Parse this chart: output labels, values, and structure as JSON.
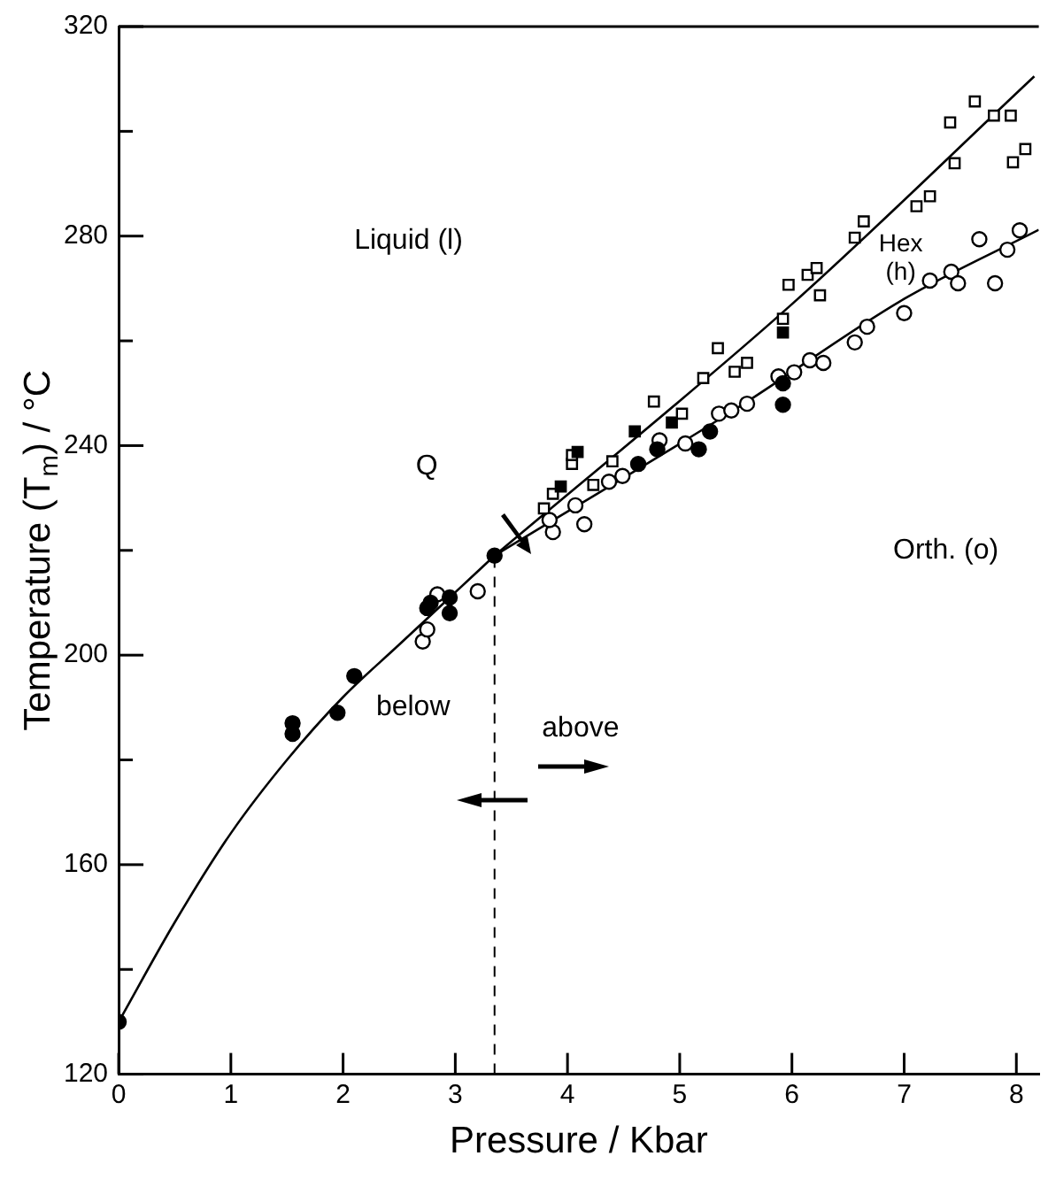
{
  "chart_data": {
    "type": "scatter",
    "xlabel": "Pressure / Kbar",
    "ylabel": "Temperature (T$_{m}$) / °C",
    "xlim": [
      0,
      8.2
    ],
    "ylim": [
      120,
      320
    ],
    "xticks": [
      0,
      1,
      2,
      3,
      4,
      5,
      6,
      7,
      8
    ],
    "yticks": [
      120,
      {
        "value": 140,
        "label": null
      },
      160,
      {
        "value": 180,
        "label": null
      },
      200,
      {
        "value": 220,
        "label": null
      },
      240,
      {
        "value": 260,
        "label": null
      },
      280,
      {
        "value": 300,
        "label": null
      },
      320
    ],
    "grid": false,
    "legend": false,
    "series": [
      {
        "type": "line",
        "color": "#000000",
        "marker": "none",
        "x": [
          0,
          0.5,
          1,
          1.5,
          2,
          2.5,
          3,
          3.35
        ],
        "values": [
          130,
          149,
          166,
          180,
          192,
          202,
          212,
          219
        ]
      },
      {
        "type": "line",
        "color": "#000000",
        "marker": "none",
        "x": [
          3.35,
          6,
          8.16
        ],
        "values": [
          219,
          267,
          310.5
        ]
      },
      {
        "type": "line",
        "color": "#000000",
        "marker": "none",
        "x": [
          3.35,
          5.5,
          7,
          8.2
        ],
        "values": [
          219,
          247,
          268,
          281.2
        ]
      },
      {
        "type": "scatter",
        "color": "#000000",
        "marker": "circle",
        "x": [
          0,
          1.55,
          1.55,
          1.95,
          2.1,
          2.75,
          2.78,
          2.95,
          2.95,
          3.35,
          4.63,
          4.8,
          5.17,
          5.27,
          5.92,
          5.92
        ],
        "values": [
          130,
          185,
          187,
          189,
          196,
          209,
          210,
          208,
          211,
          219,
          236.5,
          239.3,
          239.3,
          242.7,
          251.9,
          247.8
        ]
      },
      {
        "type": "scatter",
        "color": "#ffffff",
        "marker": "circle",
        "x": [
          2.71,
          2.75,
          2.84,
          3.2,
          3.87,
          3.84,
          4.07,
          4.15,
          4.37,
          4.49,
          4.82,
          5.05,
          5.35,
          5.46,
          5.6,
          5.88,
          6.02,
          6.16,
          6.28,
          6.56,
          6.67,
          7.0,
          7.23,
          7.42,
          7.48,
          7.67,
          7.81,
          7.92,
          8.03
        ],
        "values": [
          202.6,
          204.9,
          211.6,
          212.2,
          223.5,
          225.8,
          228.6,
          225,
          233.1,
          234.2,
          241,
          240.4,
          246.1,
          246.7,
          248,
          253.2,
          254,
          256.3,
          255.8,
          259.7,
          262.7,
          265.3,
          271.5,
          273.2,
          271,
          279.4,
          271,
          277.4,
          281.1
        ]
      },
      {
        "type": "scatter",
        "color": "#000000",
        "marker": "square",
        "x": [
          4.09,
          3.94,
          4.6,
          4.93,
          5.92
        ],
        "values": [
          238.8,
          232.2,
          242.7,
          244.4,
          261.6
        ]
      },
      {
        "type": "scatter",
        "color": "#ffffff",
        "marker": "square",
        "x": [
          3.79,
          3.87,
          4.04,
          4.04,
          4.23,
          4.4,
          4.77,
          5.02,
          5.21,
          5.34,
          5.49,
          5.6,
          5.92,
          5.97,
          6.14,
          6.22,
          6.25,
          6.56,
          6.64,
          7.11,
          7.23,
          7.45,
          7.41,
          7.63,
          7.8,
          7.95,
          7.97,
          8.08
        ],
        "values": [
          228,
          230.8,
          236.5,
          238.2,
          232.5,
          237,
          248.4,
          246.1,
          252.9,
          258.6,
          254.1,
          255.8,
          264.2,
          270.7,
          272.6,
          273.9,
          268.7,
          279.7,
          282.8,
          285.7,
          287.6,
          293.9,
          301.7,
          305.7,
          303,
          303,
          294.1,
          296.6
        ]
      }
    ],
    "ref_lines": [
      {
        "axis": "x",
        "value": 3.35,
        "line_style": "dashed",
        "color": "#000000"
      }
    ],
    "annotations": [
      "Liquid (l)",
      "Hex\n(h)",
      "Orth. (o)",
      "Q",
      "below",
      "above"
    ]
  }
}
